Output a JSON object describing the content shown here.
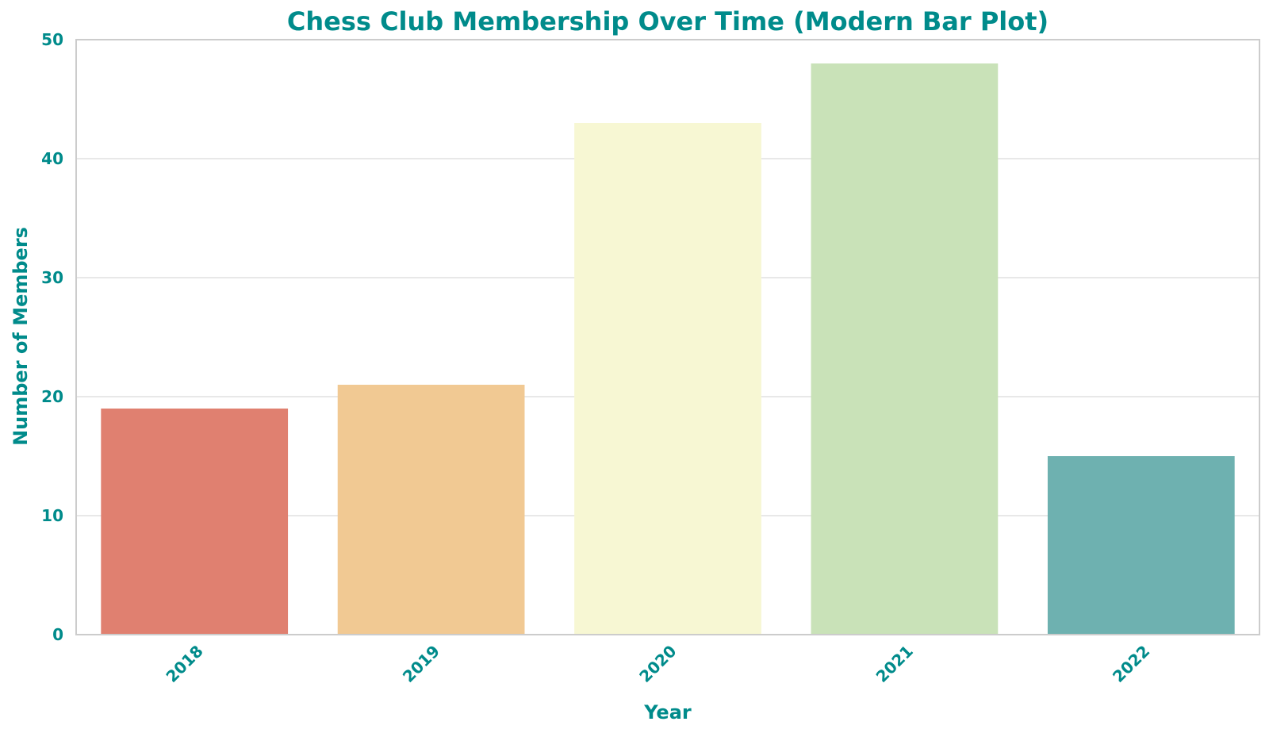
{
  "chart_data": {
    "type": "bar",
    "title": "Chess Club Membership Over Time (Modern Bar Plot)",
    "xlabel": "Year",
    "ylabel": "Number of Members",
    "categories": [
      "2018",
      "2019",
      "2020",
      "2021",
      "2022"
    ],
    "values": [
      19,
      21,
      43,
      48,
      15
    ],
    "ylim": [
      0,
      50
    ],
    "yticks": [
      0,
      10,
      20,
      30,
      40,
      50
    ],
    "grid": true,
    "grid_axis": "y",
    "legend": "none",
    "bar_colors": [
      "#e08070",
      "#f1c993",
      "#f7f7d3",
      "#c9e2b8",
      "#6eb1b0"
    ],
    "text_color": "#008b8b",
    "grid_color": "#e0e0e0",
    "frame_color": "#cccccc"
  }
}
